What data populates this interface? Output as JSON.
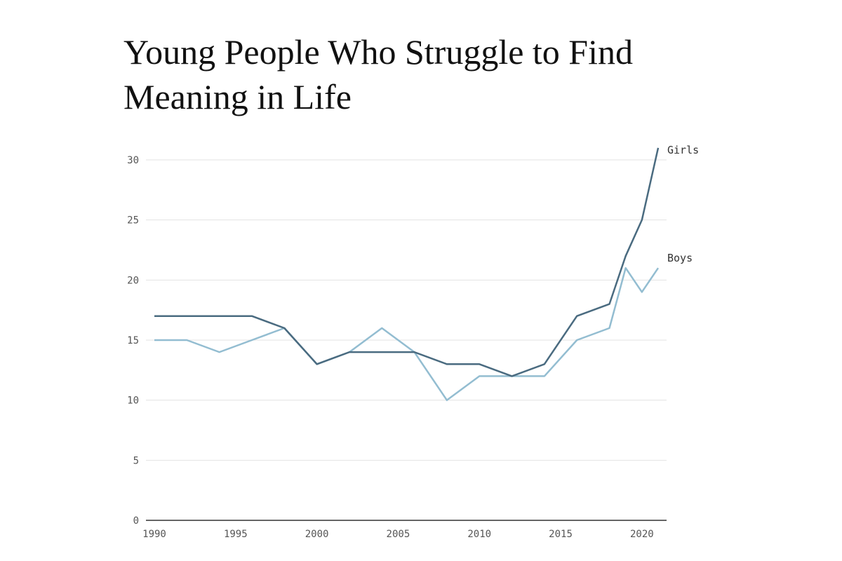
{
  "chart_data": {
    "type": "line",
    "title": "Young People Who Struggle to Find Meaning in Life",
    "xlabel": "",
    "ylabel": "",
    "xlim": [
      1990,
      2021
    ],
    "ylim": [
      0,
      30
    ],
    "x_ticks": [
      1990,
      1995,
      2000,
      2005,
      2010,
      2015,
      2020
    ],
    "y_ticks": [
      0,
      5,
      10,
      15,
      20,
      25,
      30
    ],
    "grid": "horizontal",
    "legend": "inline labels at line ends",
    "series": [
      {
        "name": "Girls",
        "color": "#4a6b80",
        "x": [
          1990,
          1992,
          1994,
          1996,
          1998,
          2000,
          2002,
          2004,
          2006,
          2008,
          2010,
          2012,
          2014,
          2016,
          2018,
          2019,
          2020,
          2021
        ],
        "values": [
          17,
          17,
          17,
          17,
          16,
          13,
          14,
          14,
          14,
          13,
          13,
          12,
          13,
          17,
          18,
          22,
          25,
          31
        ]
      },
      {
        "name": "Boys",
        "color": "#93bdd1",
        "x": [
          1990,
          1992,
          1994,
          1996,
          1998,
          2000,
          2002,
          2004,
          2006,
          2008,
          2010,
          2012,
          2014,
          2016,
          2018,
          2019,
          2020,
          2021
        ],
        "values": [
          15,
          15,
          14,
          15,
          16,
          13,
          14,
          16,
          14,
          10,
          12,
          12,
          12,
          15,
          16,
          21,
          19,
          21
        ]
      }
    ]
  }
}
